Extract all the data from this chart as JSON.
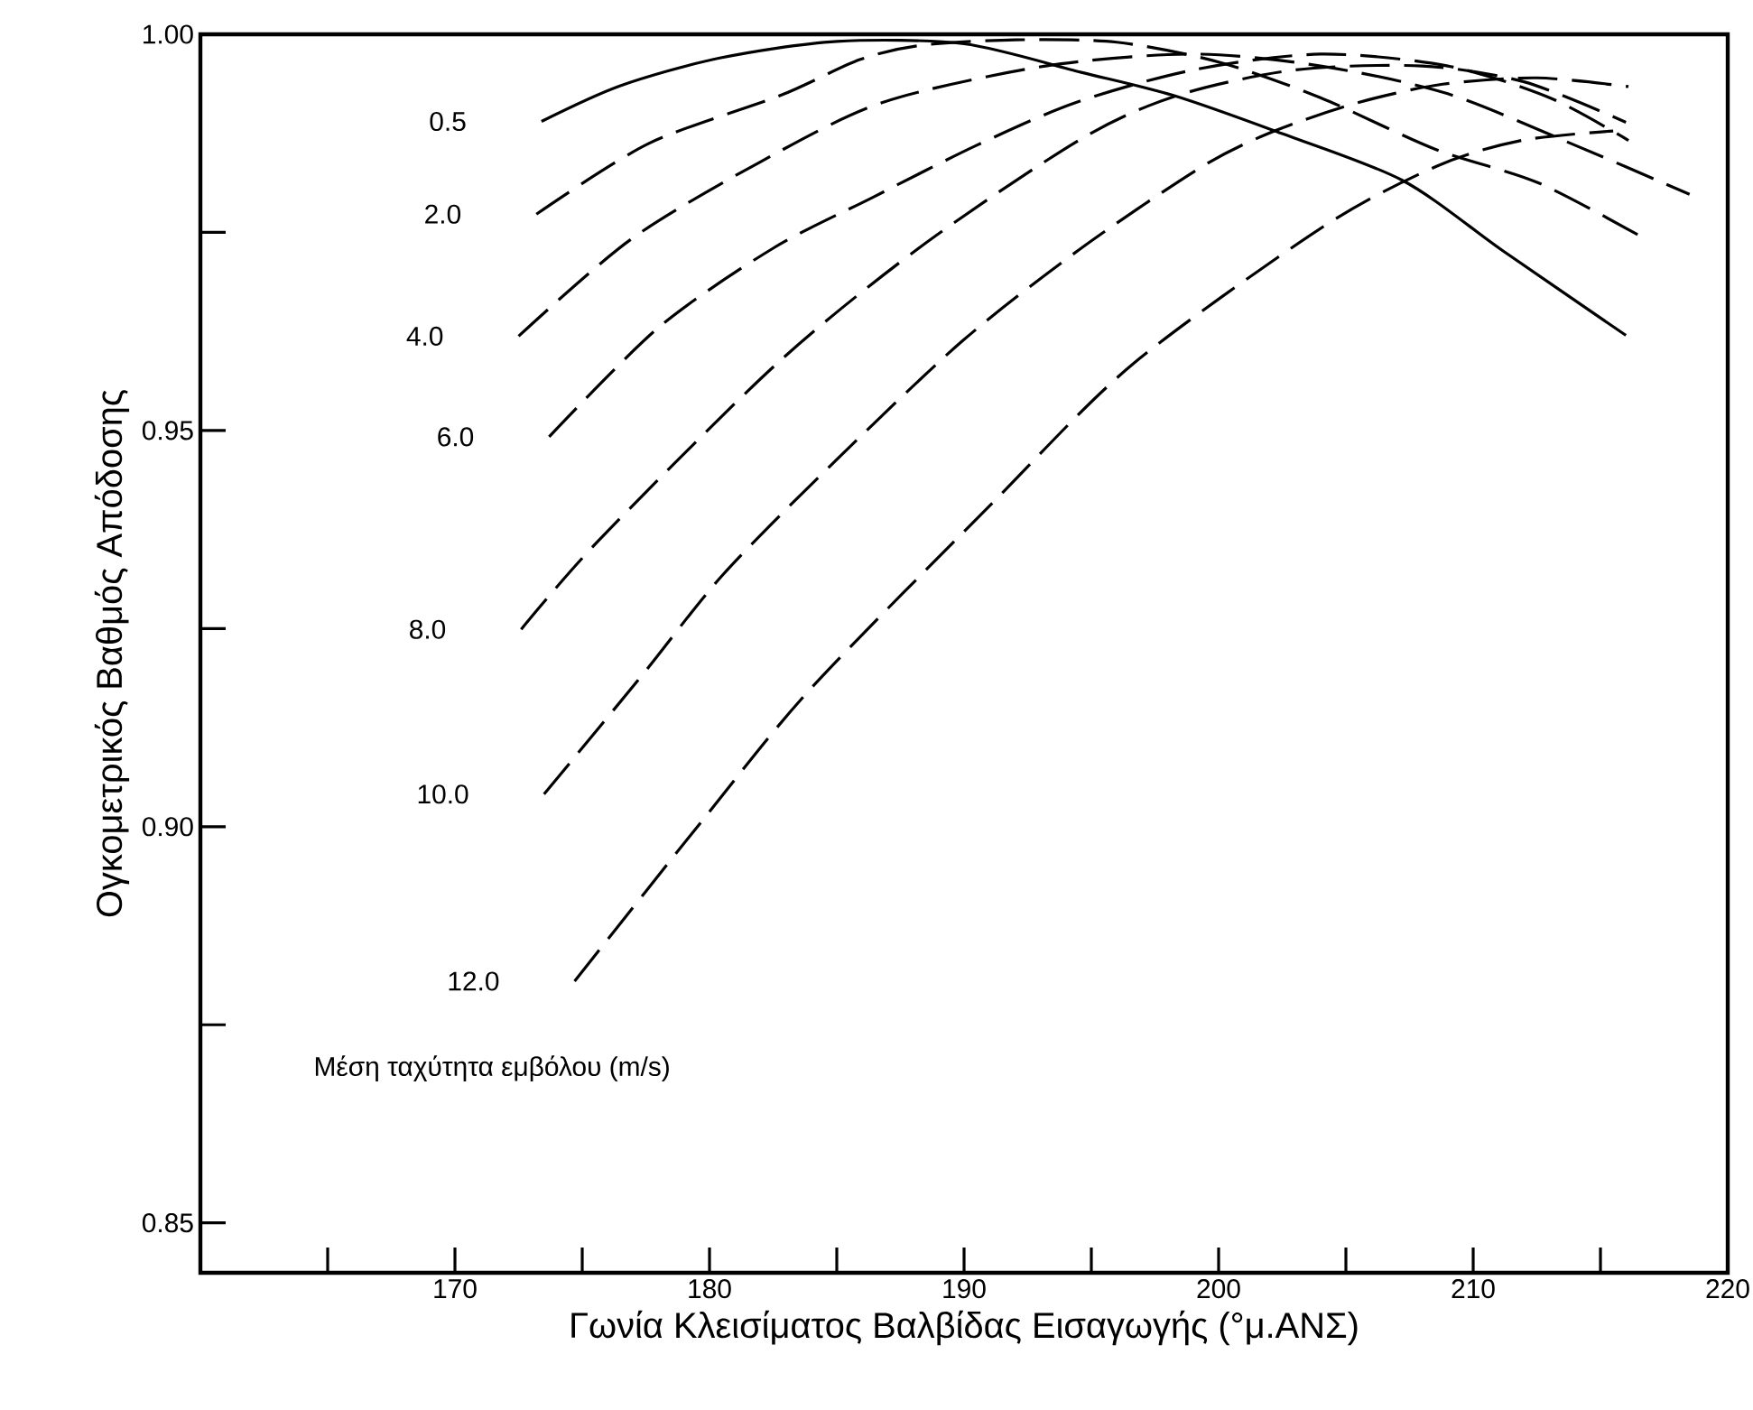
{
  "chart_data": {
    "type": "line",
    "xlabel": "Γωνία Κλεισίματος Βαλβίδας Εισαγωγής (°μ.ΑΝΣ)",
    "ylabel": "Ογκομετρικός Βαθμός Απόδοσης",
    "annotations": [
      "Μέση ταχύτητα εμβόλου (m/s)"
    ],
    "xlim": [
      160,
      220
    ],
    "ylim": [
      0.8437,
      1.0
    ],
    "xticks": [
      {
        "value": 165,
        "label": null
      },
      170,
      {
        "value": 175,
        "label": null
      },
      180,
      {
        "value": 185,
        "label": null
      },
      190,
      {
        "value": 195,
        "label": null
      },
      200,
      {
        "value": 205,
        "label": null
      },
      210,
      {
        "value": 215,
        "label": null
      },
      220
    ],
    "yticks": [
      0.85,
      {
        "value": 0.875,
        "label": null
      },
      {
        "value": 0.9,
        "label": "0.90"
      },
      {
        "value": 0.925,
        "label": null
      },
      0.95,
      {
        "value": 0.975,
        "label": null
      },
      {
        "value": 1.0,
        "label": "1.00"
      }
    ],
    "series": [
      {
        "name": "0.5",
        "color": "#000000",
        "line_style": "solid",
        "x": [
          173.4,
          176.5,
          180.4,
          185,
          190,
          194.6,
          198.2,
          202.2,
          207.2,
          211.2,
          216
        ],
        "values": [
          0.989,
          0.9935,
          0.997,
          0.9991,
          0.9988,
          0.9952,
          0.9923,
          0.9878,
          0.9816,
          0.9726,
          0.962
        ]
      },
      {
        "name": "2.0",
        "color": "#000000",
        "line_style": "dashed",
        "x": [
          173.2,
          177.6,
          182.8,
          185.9,
          188.3,
          192,
          196,
          200,
          204,
          208.5,
          212.6,
          216.8
        ],
        "values": [
          0.9773,
          0.9862,
          0.9923,
          0.9968,
          0.9986,
          0.9993,
          0.999,
          0.9965,
          0.992,
          0.9855,
          0.9812,
          0.9741
        ]
      },
      {
        "name": "4.0",
        "color": "#000000",
        "line_style": "dashed",
        "x": [
          172.5,
          176.9,
          182,
          186.8,
          193.2,
          199,
          204,
          209,
          214,
          218.5
        ],
        "values": [
          0.9619,
          0.9741,
          0.9839,
          0.9914,
          0.996,
          0.9975,
          0.996,
          0.9925,
          0.986,
          0.9798
        ]
      },
      {
        "name": "6.0",
        "color": "#000000",
        "line_style": "dashed",
        "x": [
          173.7,
          178,
          182.5,
          186.4,
          190.5,
          194.4,
          199,
          204,
          209,
          213,
          216.1
        ],
        "values": [
          0.9492,
          0.963,
          0.973,
          0.9794,
          0.986,
          0.9914,
          0.9955,
          0.9975,
          0.996,
          0.992,
          0.9866
        ]
      },
      {
        "name": "8.0",
        "color": "#000000",
        "line_style": "dashed",
        "x": [
          172.6,
          175.7,
          182.6,
          188.3,
          194.6,
          198.4,
          203,
          208,
          212,
          216
        ],
        "values": [
          0.9249,
          0.9363,
          0.9583,
          0.9732,
          0.9868,
          0.9923,
          0.9955,
          0.996,
          0.994,
          0.9889
        ]
      },
      {
        "name": "10.0",
        "color": "#000000",
        "line_style": "dashed",
        "x": [
          173.5,
          177.4,
          180.5,
          184.7,
          189.9,
          194.6,
          199.4,
          202.2,
          205.5,
          208.8,
          212.5,
          216.1
        ],
        "values": [
          0.9041,
          0.9193,
          0.9317,
          0.9454,
          0.9612,
          0.973,
          0.9834,
          0.9878,
          0.9914,
          0.9937,
          0.9945,
          0.9934
        ]
      },
      {
        "name": "12.0",
        "color": "#000000",
        "line_style": "dashed",
        "x": [
          174.7,
          179.8,
          184,
          191.1,
          196.6,
          204.1,
          208.6,
          211.9,
          215.5
        ],
        "values": [
          0.8805,
          0.9011,
          0.9175,
          0.9408,
          0.9583,
          0.9757,
          0.9834,
          0.9866,
          0.9878
        ]
      }
    ]
  }
}
